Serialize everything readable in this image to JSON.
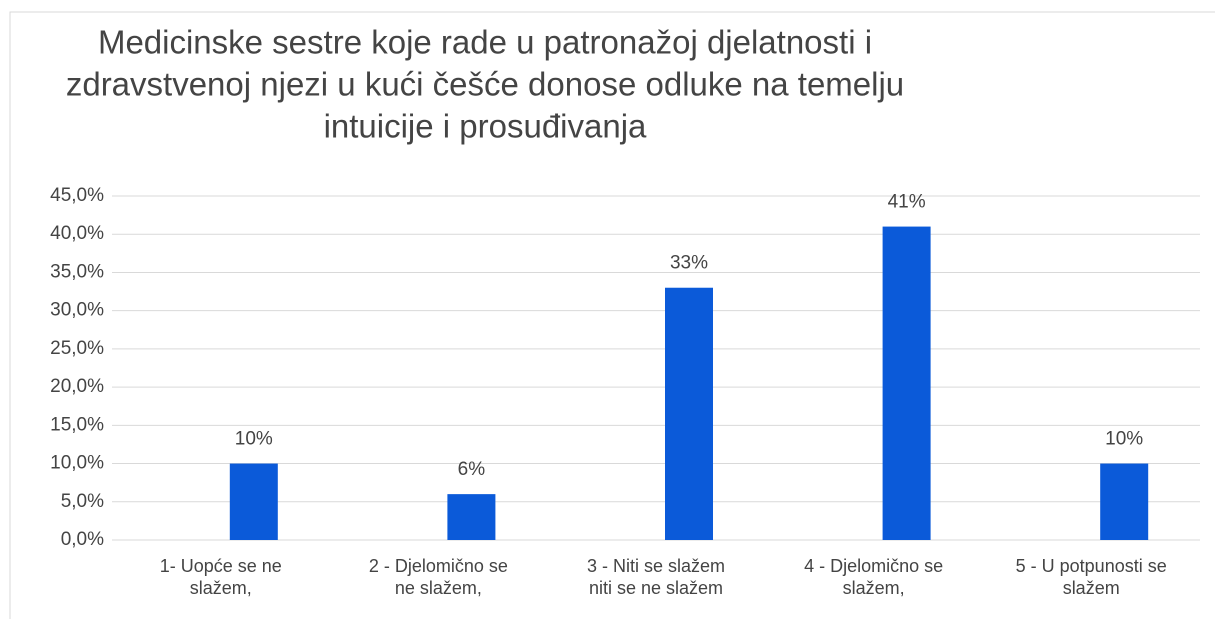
{
  "chart_data": {
    "type": "bar",
    "title": [
      "Medicinske sestre koje rade u patronažoj djelatnosti i",
      "zdravstvenoj njezi u kući češće donose odluke na temelju",
      "intuicije i prosuđivanja"
    ],
    "categories": [
      [
        "1-  Uopće se ne",
        "slažem,"
      ],
      [
        "2 - Djelomično se",
        "ne slažem,"
      ],
      [
        "3 - Niti se slažem",
        "niti se ne slažem"
      ],
      [
        "4 - Djelomično se",
        "slažem,"
      ],
      [
        "5 - U potpunosti se",
        "slažem"
      ]
    ],
    "values": [
      10,
      6,
      33,
      41,
      10
    ],
    "value_labels": [
      "10%",
      "6%",
      "33%",
      "41%",
      "10%"
    ],
    "color": "#0b5ad9",
    "ylim": [
      0,
      45
    ],
    "yticks": [
      {
        "value": 0,
        "label": "0,0%"
      },
      {
        "value": 5,
        "label": "5,0%"
      },
      {
        "value": 10,
        "label": "10,0%"
      },
      {
        "value": 15,
        "label": "15,0%"
      },
      {
        "value": 20,
        "label": "20,0%"
      },
      {
        "value": 25,
        "label": "25,0%"
      },
      {
        "value": 30,
        "label": "30,0%"
      },
      {
        "value": 35,
        "label": "35,0%"
      },
      {
        "value": 40,
        "label": "40,0%"
      },
      {
        "value": 45,
        "label": "45,0%"
      }
    ],
    "grid": true
  }
}
